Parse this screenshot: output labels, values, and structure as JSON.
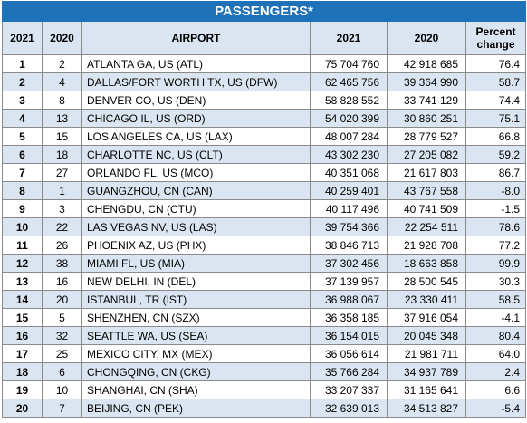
{
  "table": {
    "title": "PASSENGERS*",
    "headers": [
      "2021",
      "2020",
      "AIRPORT",
      "2021",
      "2020",
      "Percent change"
    ],
    "rows": [
      [
        "1",
        "2",
        "ATLANTA GA, US (ATL)",
        "75 704 760",
        "42 918 685",
        "76.4"
      ],
      [
        "2",
        "4",
        "DALLAS/FORT WORTH TX, US (DFW)",
        "62 465 756",
        "39 364 990",
        "58.7"
      ],
      [
        "3",
        "8",
        "DENVER CO, US (DEN)",
        "58 828 552",
        "33 741 129",
        "74.4"
      ],
      [
        "4",
        "13",
        "CHICAGO IL, US (ORD)",
        "54 020 399",
        "30 860 251",
        "75.1"
      ],
      [
        "5",
        "15",
        "LOS ANGELES CA, US (LAX)",
        "48 007 284",
        "28 779 527",
        "66.8"
      ],
      [
        "6",
        "18",
        "CHARLOTTE NC, US (CLT)",
        "43 302 230",
        "27 205 082",
        "59.2"
      ],
      [
        "7",
        "27",
        "ORLANDO FL, US (MCO)",
        "40 351 068",
        "21 617 803",
        "86.7"
      ],
      [
        "8",
        "1",
        "GUANGZHOU, CN (CAN)",
        "40 259 401",
        "43 767 558",
        "-8.0"
      ],
      [
        "9",
        "3",
        "CHENGDU, CN (CTU)",
        "40 117 496",
        "40 741 509",
        "-1.5"
      ],
      [
        "10",
        "22",
        "LAS VEGAS NV, US (LAS)",
        "39 754 366",
        "22 254 511",
        "78.6"
      ],
      [
        "11",
        "26",
        "PHOENIX AZ, US (PHX)",
        "38 846 713",
        "21 928 708",
        "77.2"
      ],
      [
        "12",
        "38",
        "MIAMI FL, US (MIA)",
        "37 302 456",
        "18 663 858",
        "99.9"
      ],
      [
        "13",
        "16",
        "NEW DELHI, IN (DEL)",
        "37 139 957",
        "28 500 545",
        "30.3"
      ],
      [
        "14",
        "20",
        "ISTANBUL, TR (IST)",
        "36 988 067",
        "23 330 411",
        "58.5"
      ],
      [
        "15",
        "5",
        "SHENZHEN, CN (SZX)",
        "36 358 185",
        "37 916 054",
        "-4.1"
      ],
      [
        "16",
        "32",
        "SEATTLE WA, US (SEA)",
        "36 154 015",
        "20 045 348",
        "80.4"
      ],
      [
        "17",
        "25",
        "MEXICO CITY, MX (MEX)",
        "36 056 614",
        "21 981 711",
        "64.0"
      ],
      [
        "18",
        "6",
        "CHONGQING, CN (CKG)",
        "35 766 284",
        "34 937 789",
        "2.4"
      ],
      [
        "19",
        "10",
        "SHANGHAI, CN (SHA)",
        "33 207 337",
        "31 165 641",
        "6.6"
      ],
      [
        "20",
        "7",
        "BEIJING, CN (PEK)",
        "32 639 013",
        "34 513 827",
        "-5.4"
      ]
    ]
  },
  "colors": {
    "title_bg": "#1f72b8",
    "title_text": "#ffffff",
    "stripe": "#dbe5f1",
    "border": "#8a8a8a"
  }
}
